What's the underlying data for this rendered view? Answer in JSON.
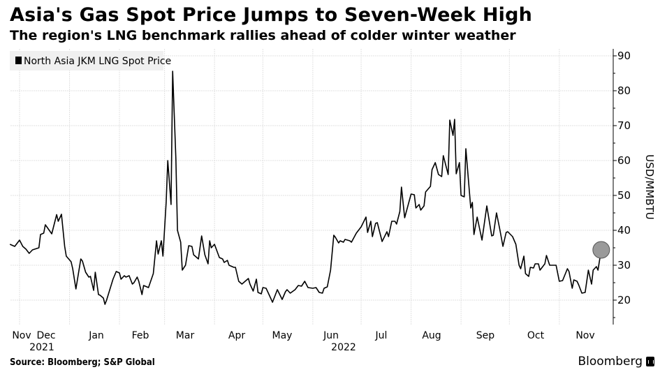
{
  "header": {
    "title": "Asia's Gas Spot Price Jumps to Seven-Week High",
    "subtitle": "The region's LNG benchmark rallies ahead of colder winter weather"
  },
  "footer": {
    "source": "Source: Bloomberg; S&P Global",
    "brand": "Bloomberg"
  },
  "chart_data": {
    "type": "line",
    "title": "Asia's Gas Spot Price Jumps to Seven-Week High",
    "subtitle": "The region's LNG benchmark rallies ahead of colder winter weather",
    "xlabel": "",
    "ylabel": "USD/MMBTU",
    "x_unit": "days since 2021-12-01",
    "xlim": [
      -6,
      368
    ],
    "ylim": [
      13,
      91
    ],
    "y_ticks": [
      20,
      30,
      40,
      50,
      60,
      70,
      80,
      90
    ],
    "x_tick_labels": [
      "Nov",
      "Dec",
      "Jan",
      "Feb",
      "Mar",
      "Apr",
      "May",
      "Jun",
      "Jul",
      "Aug",
      "Sep",
      "Oct",
      "Nov"
    ],
    "x_year_labels": [
      "2021",
      "2022"
    ],
    "grid": true,
    "legend": {
      "position": "top-left",
      "entries": [
        "North Asia JKM LNG Spot Price"
      ]
    },
    "highlight": {
      "x": 361,
      "y": 34.4,
      "note": "latest value marker"
    },
    "colors": {
      "line": "#000000",
      "marker": "#9a9a9a",
      "grid": "#e2e2e2",
      "legend_bg": "#f0f0f0"
    },
    "series": [
      {
        "name": "North Asia JKM LNG Spot Price",
        "x": [
          -6,
          -3,
          0,
          2,
          4,
          6,
          8,
          12,
          13,
          15,
          16,
          20,
          23,
          24,
          26,
          28,
          29,
          32,
          33,
          35,
          38,
          39,
          41,
          43,
          44,
          46,
          47,
          49,
          50,
          52,
          53,
          54,
          58,
          60,
          62,
          63,
          65,
          66,
          68,
          70,
          71,
          73,
          74,
          76,
          77,
          80,
          83,
          85,
          86,
          88,
          89,
          91,
          92,
          94,
          95,
          97,
          98,
          100,
          101,
          103,
          105,
          107,
          108,
          111,
          113,
          115,
          117,
          118,
          119,
          121,
          124,
          126,
          127,
          129,
          130,
          133,
          134,
          136,
          138,
          140,
          142,
          143,
          145,
          147,
          148,
          150,
          151,
          153,
          156,
          157,
          160,
          163,
          165,
          166,
          168,
          171,
          173,
          175,
          177,
          179,
          182,
          184,
          186,
          188,
          189,
          191,
          193,
          195,
          196,
          198,
          199,
          201,
          202,
          205,
          206,
          209,
          212,
          215,
          216,
          218,
          219,
          221,
          222,
          225,
          228,
          229,
          231,
          233,
          234,
          236,
          237,
          239,
          243,
          245,
          246,
          248,
          249,
          251,
          252,
          255,
          256,
          258,
          260,
          262,
          263,
          266,
          267,
          269,
          270,
          271,
          273,
          274,
          276,
          277,
          280,
          281,
          282,
          284,
          287,
          290,
          293,
          294,
          296,
          298,
          300,
          302,
          303,
          306,
          308,
          310,
          311,
          313,
          314,
          316,
          317,
          319,
          320,
          322,
          323,
          326,
          327,
          329,
          333,
          335,
          337,
          340,
          341,
          343,
          344,
          346,
          347,
          349,
          351,
          353,
          355,
          356,
          358,
          359,
          361
        ],
        "values": [
          36,
          35.4,
          37.2,
          35.4,
          34.6,
          33.4,
          34.4,
          35,
          38.8,
          39.2,
          41.6,
          39,
          44.5,
          42.6,
          44.6,
          35.4,
          32.6,
          31,
          29,
          23.2,
          31.8,
          31.2,
          28,
          26.6,
          26.8,
          22.8,
          28,
          21.6,
          21.4,
          20.6,
          18.8,
          20,
          26,
          28.2,
          27.8,
          26,
          27,
          26.6,
          27,
          24.6,
          25,
          26.6,
          25.4,
          21.6,
          24.2,
          23.6,
          27.6,
          37,
          33.2,
          37,
          32.6,
          48,
          60,
          47.4,
          85.6,
          60.6,
          40,
          36.6,
          28.6,
          30,
          35.6,
          35.4,
          33,
          31.8,
          38.4,
          33,
          30.4,
          37,
          35,
          36,
          32.2,
          31.8,
          30.8,
          31.4,
          30,
          29.4,
          29.4,
          25.4,
          24.6,
          25.4,
          26.2,
          24.6,
          22.6,
          26,
          22.2,
          21.8,
          23.6,
          23.4,
          20.4,
          19.4,
          23,
          20.2,
          22.4,
          23,
          22,
          23,
          24.2,
          24,
          25.4,
          23.6,
          23.4,
          23.6,
          22.2,
          22,
          23.4,
          23.8,
          28.6,
          38.6,
          38,
          36.4,
          37,
          36.6,
          37.4,
          37,
          36.6,
          39.2,
          41,
          43.8,
          39.4,
          42.6,
          38.2,
          42,
          42.2,
          36.8,
          39.6,
          38.2,
          42.6,
          42.6,
          41.8,
          45.4,
          52.4,
          43.6,
          50.4,
          50.2,
          46.4,
          47.4,
          45.8,
          47,
          51,
          52.6,
          57.4,
          59.4,
          56,
          55.4,
          61.4,
          56,
          71.6,
          67.2,
          71.8,
          56.2,
          59.4,
          50,
          49.6,
          63.4,
          46.4,
          48,
          38.8,
          43.8,
          37.2,
          47,
          38.4,
          38.6,
          45,
          40.4,
          35.4,
          39.4,
          39.6,
          38.2,
          36,
          30,
          29,
          32.6,
          27.6,
          26.8,
          29.4,
          29.2,
          30.4,
          30.4,
          28.6,
          30.4,
          32.8,
          30,
          30,
          25.4,
          25.6,
          29,
          28.2,
          23.4,
          25.8,
          25.4,
          24.4,
          22,
          22.2,
          28.6,
          24.6,
          28.6,
          29.6,
          28.6,
          34.4
        ]
      }
    ]
  }
}
